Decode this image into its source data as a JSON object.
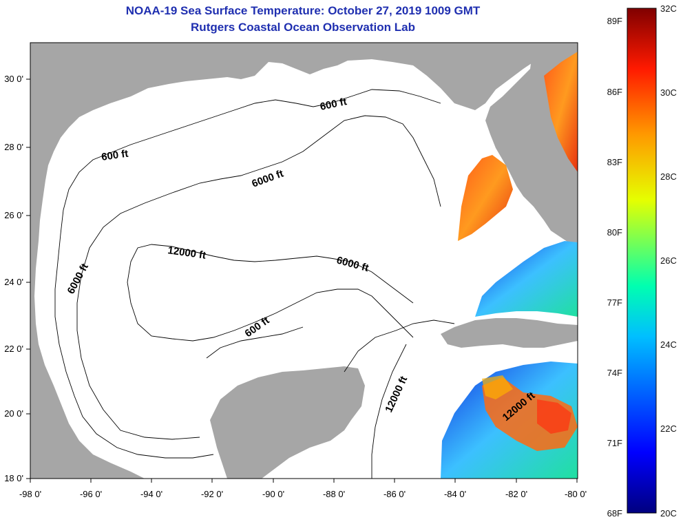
{
  "title": {
    "line1": "NOAA-19 Sea Surface Temperature:  October 27, 2019 1009 GMT",
    "line2": "Rutgers Coastal Ocean Observation Lab"
  },
  "map": {
    "lat_labels": [
      "30 0'",
      "28 0'",
      "26 0'",
      "24 0'",
      "22 0'",
      "20 0'",
      "18 0'"
    ],
    "lon_labels": [
      "-98 0'",
      "-96 0'",
      "-94 0'",
      "-92 0'",
      "-90 0'",
      "-88 0'",
      "-86 0'",
      "-84 0'",
      "-82 0'",
      "-80 0'"
    ],
    "contour_labels": [
      "600 ft",
      "600 ft",
      "600 ft",
      "6000 ft",
      "6000 ft",
      "6000 ft",
      "12000 ft",
      "12000 ft",
      "12000 ft"
    ],
    "colors": {
      "land": "#a6a6a6",
      "ocean": "#ffffff",
      "title": "#1f2fb0"
    }
  },
  "colorbar": {
    "f_labels": [
      "89F",
      "86F",
      "83F",
      "80F",
      "77F",
      "74F",
      "71F",
      "68F"
    ],
    "c_labels": [
      "32C",
      "30C",
      "28C",
      "26C",
      "24C",
      "22C",
      "20C"
    ],
    "range_c": [
      20,
      32
    ],
    "range_f": [
      68,
      89.6
    ]
  }
}
